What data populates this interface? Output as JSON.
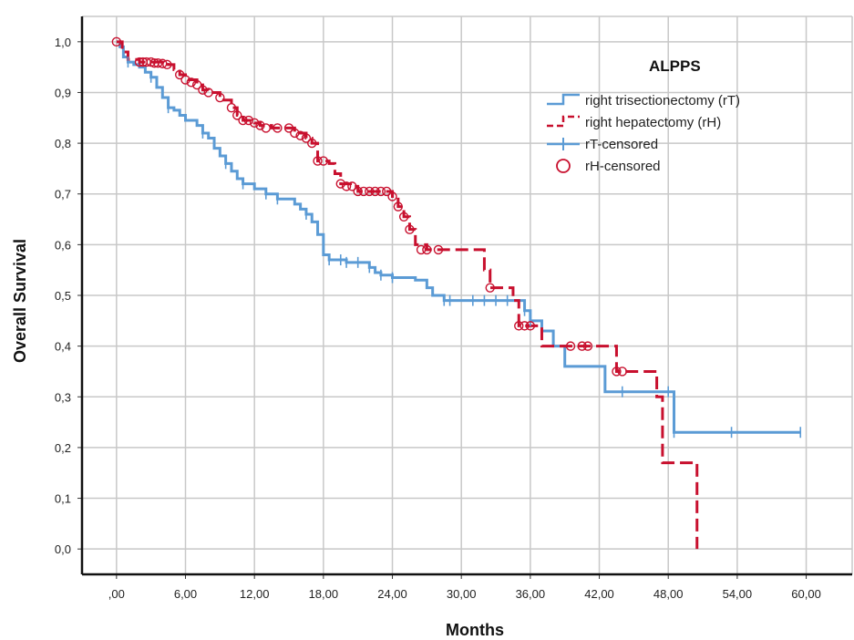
{
  "chart_data": {
    "type": "line",
    "title": "",
    "xlabel": "Months",
    "ylabel": "Overall Survival",
    "xlim": [
      -3,
      64
    ],
    "ylim": [
      -0.05,
      1.05
    ],
    "x_ticks": [
      0,
      6,
      12,
      18,
      24,
      30,
      36,
      42,
      48,
      54,
      60
    ],
    "x_tick_labels": [
      ",00",
      "6,00",
      "12,00",
      "18,00",
      "24,00",
      "30,00",
      "36,00",
      "42,00",
      "48,00",
      "54,00",
      "60,00"
    ],
    "y_ticks": [
      0,
      0.1,
      0.2,
      0.3,
      0.4,
      0.5,
      0.6,
      0.7,
      0.8,
      0.9,
      1.0
    ],
    "y_tick_labels": [
      "0,0",
      "0,1",
      "0,2",
      "0,3",
      "0,4",
      "0,5",
      "0,6",
      "0,7",
      "0,8",
      "0,9",
      "1,0"
    ],
    "grid": true,
    "legend": {
      "title": "ALPPS",
      "position": "top-right",
      "entries": [
        "right trisectionectomy (rT)",
        "right hepatectomy (rH)",
        "rT-censored",
        "rH-censored"
      ]
    },
    "colors": {
      "rT": "#5b9bd5",
      "rH": "#c8102e",
      "grid": "#c8c8c8"
    },
    "series": [
      {
        "name": "right trisectionectomy (rT)",
        "style": "solid-step",
        "color": "#5b9bd5",
        "points": [
          [
            0,
            1.0
          ],
          [
            0.3,
            0.99
          ],
          [
            0.6,
            0.97
          ],
          [
            1,
            0.96
          ],
          [
            1.5,
            0.955
          ],
          [
            2,
            0.95
          ],
          [
            2.5,
            0.94
          ],
          [
            3,
            0.93
          ],
          [
            3.5,
            0.91
          ],
          [
            4,
            0.89
          ],
          [
            4.5,
            0.87
          ],
          [
            5,
            0.865
          ],
          [
            5.5,
            0.855
          ],
          [
            6,
            0.845
          ],
          [
            7,
            0.835
          ],
          [
            7.5,
            0.82
          ],
          [
            8,
            0.81
          ],
          [
            8.5,
            0.79
          ],
          [
            9,
            0.775
          ],
          [
            9.5,
            0.76
          ],
          [
            10,
            0.745
          ],
          [
            10.5,
            0.73
          ],
          [
            11,
            0.72
          ],
          [
            12,
            0.71
          ],
          [
            13,
            0.7
          ],
          [
            14,
            0.69
          ],
          [
            15,
            0.69
          ],
          [
            15.5,
            0.68
          ],
          [
            16,
            0.67
          ],
          [
            16.5,
            0.66
          ],
          [
            17,
            0.645
          ],
          [
            17.5,
            0.62
          ],
          [
            18,
            0.58
          ],
          [
            18.5,
            0.57
          ],
          [
            20,
            0.565
          ],
          [
            22,
            0.555
          ],
          [
            22.5,
            0.545
          ],
          [
            23,
            0.54
          ],
          [
            24,
            0.535
          ],
          [
            26,
            0.53
          ],
          [
            27,
            0.515
          ],
          [
            27.5,
            0.5
          ],
          [
            28.5,
            0.49
          ],
          [
            35,
            0.49
          ],
          [
            35.5,
            0.47
          ],
          [
            36,
            0.45
          ],
          [
            37,
            0.43
          ],
          [
            38,
            0.4
          ],
          [
            39,
            0.36
          ],
          [
            42.5,
            0.31
          ],
          [
            48,
            0.31
          ],
          [
            48.5,
            0.23
          ],
          [
            59.5,
            0.23
          ]
        ]
      },
      {
        "name": "right hepatectomy (rH)",
        "style": "dashed-step",
        "color": "#c8102e",
        "points": [
          [
            0,
            1.0
          ],
          [
            0.5,
            0.98
          ],
          [
            1,
            0.965
          ],
          [
            2,
            0.96
          ],
          [
            4.5,
            0.955
          ],
          [
            5,
            0.945
          ],
          [
            5.5,
            0.935
          ],
          [
            6,
            0.925
          ],
          [
            7,
            0.915
          ],
          [
            7.5,
            0.905
          ],
          [
            8,
            0.9
          ],
          [
            9,
            0.885
          ],
          [
            10,
            0.87
          ],
          [
            10.5,
            0.855
          ],
          [
            11,
            0.845
          ],
          [
            12,
            0.84
          ],
          [
            12.5,
            0.835
          ],
          [
            13.5,
            0.83
          ],
          [
            15,
            0.83
          ],
          [
            15.5,
            0.82
          ],
          [
            16.5,
            0.81
          ],
          [
            17,
            0.8
          ],
          [
            17.5,
            0.765
          ],
          [
            18.5,
            0.76
          ],
          [
            19,
            0.74
          ],
          [
            19.5,
            0.72
          ],
          [
            20.5,
            0.715
          ],
          [
            21,
            0.705
          ],
          [
            23.5,
            0.705
          ],
          [
            24,
            0.695
          ],
          [
            24.5,
            0.675
          ],
          [
            25,
            0.655
          ],
          [
            25.5,
            0.63
          ],
          [
            26,
            0.6
          ],
          [
            27,
            0.59
          ],
          [
            28,
            0.59
          ],
          [
            29,
            0.59
          ],
          [
            32,
            0.55
          ],
          [
            32.5,
            0.515
          ],
          [
            34.5,
            0.49
          ],
          [
            35,
            0.44
          ],
          [
            36,
            0.44
          ],
          [
            37,
            0.4
          ],
          [
            43.5,
            0.35
          ],
          [
            47,
            0.3
          ],
          [
            47.5,
            0.17
          ],
          [
            50,
            0.17
          ],
          [
            50.5,
            0.0
          ]
        ]
      }
    ],
    "censored": {
      "rT": [
        1,
        3,
        4.5,
        7.5,
        9.5,
        11,
        13,
        14,
        16.5,
        18.5,
        19.5,
        20,
        21,
        22,
        23,
        24,
        28.5,
        29,
        31,
        32,
        33,
        34,
        35.5,
        36,
        44,
        48,
        48.5,
        53.5,
        59.5
      ],
      "rH": [
        [
          0,
          1.0
        ],
        [
          2,
          0.96
        ],
        [
          2.3,
          0.96
        ],
        [
          2.6,
          0.96
        ],
        [
          3,
          0.96
        ],
        [
          3.3,
          0.958
        ],
        [
          3.6,
          0.958
        ],
        [
          4,
          0.957
        ],
        [
          4.4,
          0.955
        ],
        [
          5.5,
          0.935
        ],
        [
          6,
          0.925
        ],
        [
          6.5,
          0.92
        ],
        [
          7,
          0.915
        ],
        [
          7.5,
          0.905
        ],
        [
          8,
          0.9
        ],
        [
          9,
          0.89
        ],
        [
          10,
          0.87
        ],
        [
          10.5,
          0.855
        ],
        [
          11,
          0.845
        ],
        [
          11.5,
          0.845
        ],
        [
          12,
          0.84
        ],
        [
          12.5,
          0.835
        ],
        [
          13,
          0.83
        ],
        [
          14,
          0.83
        ],
        [
          15,
          0.83
        ],
        [
          15.5,
          0.82
        ],
        [
          16,
          0.815
        ],
        [
          16.5,
          0.81
        ],
        [
          17,
          0.8
        ],
        [
          17.5,
          0.765
        ],
        [
          18,
          0.765
        ],
        [
          19.5,
          0.72
        ],
        [
          20,
          0.715
        ],
        [
          20.5,
          0.715
        ],
        [
          21,
          0.705
        ],
        [
          21.5,
          0.705
        ],
        [
          22,
          0.705
        ],
        [
          22.5,
          0.705
        ],
        [
          23,
          0.705
        ],
        [
          23.5,
          0.705
        ],
        [
          24,
          0.695
        ],
        [
          24.5,
          0.675
        ],
        [
          25,
          0.655
        ],
        [
          25.5,
          0.63
        ],
        [
          26.5,
          0.59
        ],
        [
          27,
          0.59
        ],
        [
          28,
          0.59
        ],
        [
          32.5,
          0.515
        ],
        [
          35,
          0.44
        ],
        [
          35.5,
          0.44
        ],
        [
          36,
          0.44
        ],
        [
          39.5,
          0.4
        ],
        [
          40.5,
          0.4
        ],
        [
          41,
          0.4
        ],
        [
          43.5,
          0.35
        ],
        [
          44,
          0.35
        ]
      ]
    }
  }
}
